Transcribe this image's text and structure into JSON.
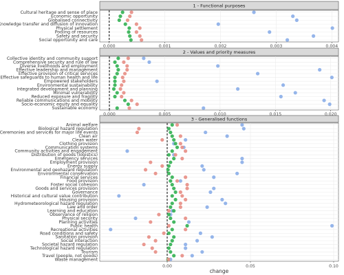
{
  "chart_data": [
    {
      "type": "dot",
      "title": "1 - Functional purposes",
      "categories": [
        "Cultural heritage and sense of place",
        "Economic opportunity",
        "Globalised connectivity",
        "Knowledge transfer and diffusion of innovation",
        "Physical settlement",
        "Pooling of resources",
        "Safety and security",
        "Social opportunity and care"
      ],
      "series": [
        {
          "color": "#8fb1e9",
          "values": [
            0.0026,
            0.0033,
            0.00337,
            0.00196,
            0.00401,
            0.00288,
            0.00367,
            0.0032
          ]
        },
        {
          "color": "#3bb45a",
          "values": [
            0.00024,
            0.0002,
            0.00018,
            0.00029,
            0.00036,
            0.00035,
            0.00037,
            0.00039
          ]
        },
        {
          "color": "#e8928a",
          "values": [
            0.0004,
            0.00037,
            0.00033,
            0.00049,
            0.00055,
            0.00049,
            0.00055,
            0.00058
          ]
        }
      ],
      "xlim": [
        -0.00017,
        0.00412
      ],
      "xticks": [
        {
          "value": 0,
          "label": "0.000"
        },
        0.001,
        0.002,
        0.003,
        0.004
      ],
      "vline": 0,
      "grid": true
    },
    {
      "type": "dot",
      "title": "2 - Values and priority measures",
      "categories": [
        "Collective identity and community support",
        "Comprehensive security and rule of law",
        "Diverse livelihoods and employment",
        "Effective leadership and management",
        "Effective provision of critical services",
        "Effective safeguards to human health and life",
        "Empowered stakeholders",
        "Environmental sustainability",
        "Integrated development and planning",
        "Minimal vulnerability",
        "Reduced exposure and fragility",
        "Reliable communications and mobility",
        "Socio-economic equity and equality",
        "Sustainable economy"
      ],
      "series": [
        {
          "color": "#8fb1e9",
          "values": [
            0.0031,
            0.0036,
            0.0098,
            0.019,
            0.0134,
            0.0201,
            0.0043,
            0.0157,
            0.0116,
            0.0168,
            0.0155,
            0.0194,
            0.0199,
            0.0085
          ]
        },
        {
          "color": "#3bb45a",
          "values": [
            0.0008,
            0.0005,
            0.0007,
            0.0008,
            0.0007,
            0.0005,
            0.0005,
            0.0005,
            0.0004,
            0.0007,
            0.0005,
            0.0014,
            0.0017,
            0.0007
          ]
        },
        {
          "color": "#e8928a",
          "values": [
            0.0017,
            0.0013,
            0.0016,
            0.0016,
            0.0014,
            0.0012,
            0.0013,
            0.0011,
            0.001,
            0.0013,
            0.0011,
            0.002,
            0.0025,
            0.0018
          ]
        }
      ],
      "xlim": [
        -0.00087,
        0.0207
      ],
      "xticks": [
        {
          "value": 0,
          "label": "0.000"
        },
        0.005,
        {
          "value": 0.01,
          "label": "0.010"
        },
        0.015,
        {
          "value": 0.02,
          "label": "0.020"
        }
      ],
      "vline": 0,
      "grid": true
    },
    {
      "type": "dot",
      "title": "3 - Generalised functions",
      "x_label": "change",
      "categories": [
        "Animal welfare",
        "Biological hazard regulation",
        "Ceremonies and services for major life events",
        "Clean air",
        "Clean water",
        "Clothing provision",
        "Communication systems",
        "Community activities and engagement",
        "Distribution of goods (logistics)",
        "Emergency services",
        "Employment provision",
        "Energy supply",
        "Environmental and geohazard regulation",
        "Environmental conservation",
        "Financial services",
        "Food provision",
        "Foster social cohesion",
        "Goods and services provision",
        "Governance",
        "Historical and cultural value contribution",
        "Housing provision",
        "Hydrometeorological hazard regulation",
        "Law and order",
        "Learning and education",
        "Observance of religion",
        "Physical security",
        "Planning activities",
        "Public health",
        "Recreational activities",
        "Road conditions and safety",
        "Sanitation provision",
        "Social interaction",
        "Societal hazard regulation",
        "Technological hazard regulation",
        "Tourism",
        "Travel (people, not goods)",
        "Waste management"
      ],
      "series": [
        {
          "color": "#8fb1e9",
          "values": [
            0.045,
            0.046,
            0.023,
            0.036,
            0.011,
            0.004,
            0.01,
            -0.024,
            0.004,
            0.045,
            0.045,
            0.021,
            0.022,
            0.042,
            0.028,
            0.008,
            -0.014,
            0.028,
            0.026,
            -0.029,
            0.033,
            0.035,
            0.024,
            0.003,
            0.002,
            -0.019,
            0.013,
            0.099,
            -0.034,
            0.02,
            0.027,
            0.018,
            0.011,
            0.011,
            0.021,
            0.015,
            0.002
          ]
        },
        {
          "color": "#3bb45a",
          "values": [
            0.003,
            0.001,
            0.002,
            0.003,
            0.004,
            0.005,
            0.006,
            0.003,
            0.001,
            0.004,
            0.002,
            0.001,
            0.0005,
            0.001,
            0.003,
            0.002,
            0.003,
            0.004,
            0.005,
            0.003,
            0.005,
            0.003,
            0.002,
            0.004,
            0.001,
            0.002,
            0.004,
            0.012,
            0.003,
            0.001,
            0.004,
            0.003,
            0.002,
            0.001,
            0.002,
            0.004,
            0.0005
          ]
        },
        {
          "color": "#e8928a",
          "values": [
            0.006,
            -0.017,
            -0.018,
            0.008,
            -0.003,
            0.008,
            0.009,
            0.011,
            0.005,
            0.009,
            -0.01,
            -0.003,
            -0.013,
            -0.007,
            0.011,
            0.006,
            0.012,
            0.012,
            0.008,
            0.009,
            0.011,
            0.008,
            0.008,
            0.001,
            -0.005,
            0.011,
            -0.01,
            0.001,
            0.011,
            -0.002,
            -0.011,
            -0.007,
            -0.014,
            -0.009,
            -0.007,
            0.009,
            0.0008
          ]
        }
      ],
      "xlim": [
        -0.0405,
        0.1029
      ],
      "xticks": [
        {
          "value": 0,
          "label": "0.00"
        },
        0.05,
        {
          "value": 0.1,
          "label": "0.10"
        }
      ],
      "vline": 0,
      "grid": true
    }
  ]
}
